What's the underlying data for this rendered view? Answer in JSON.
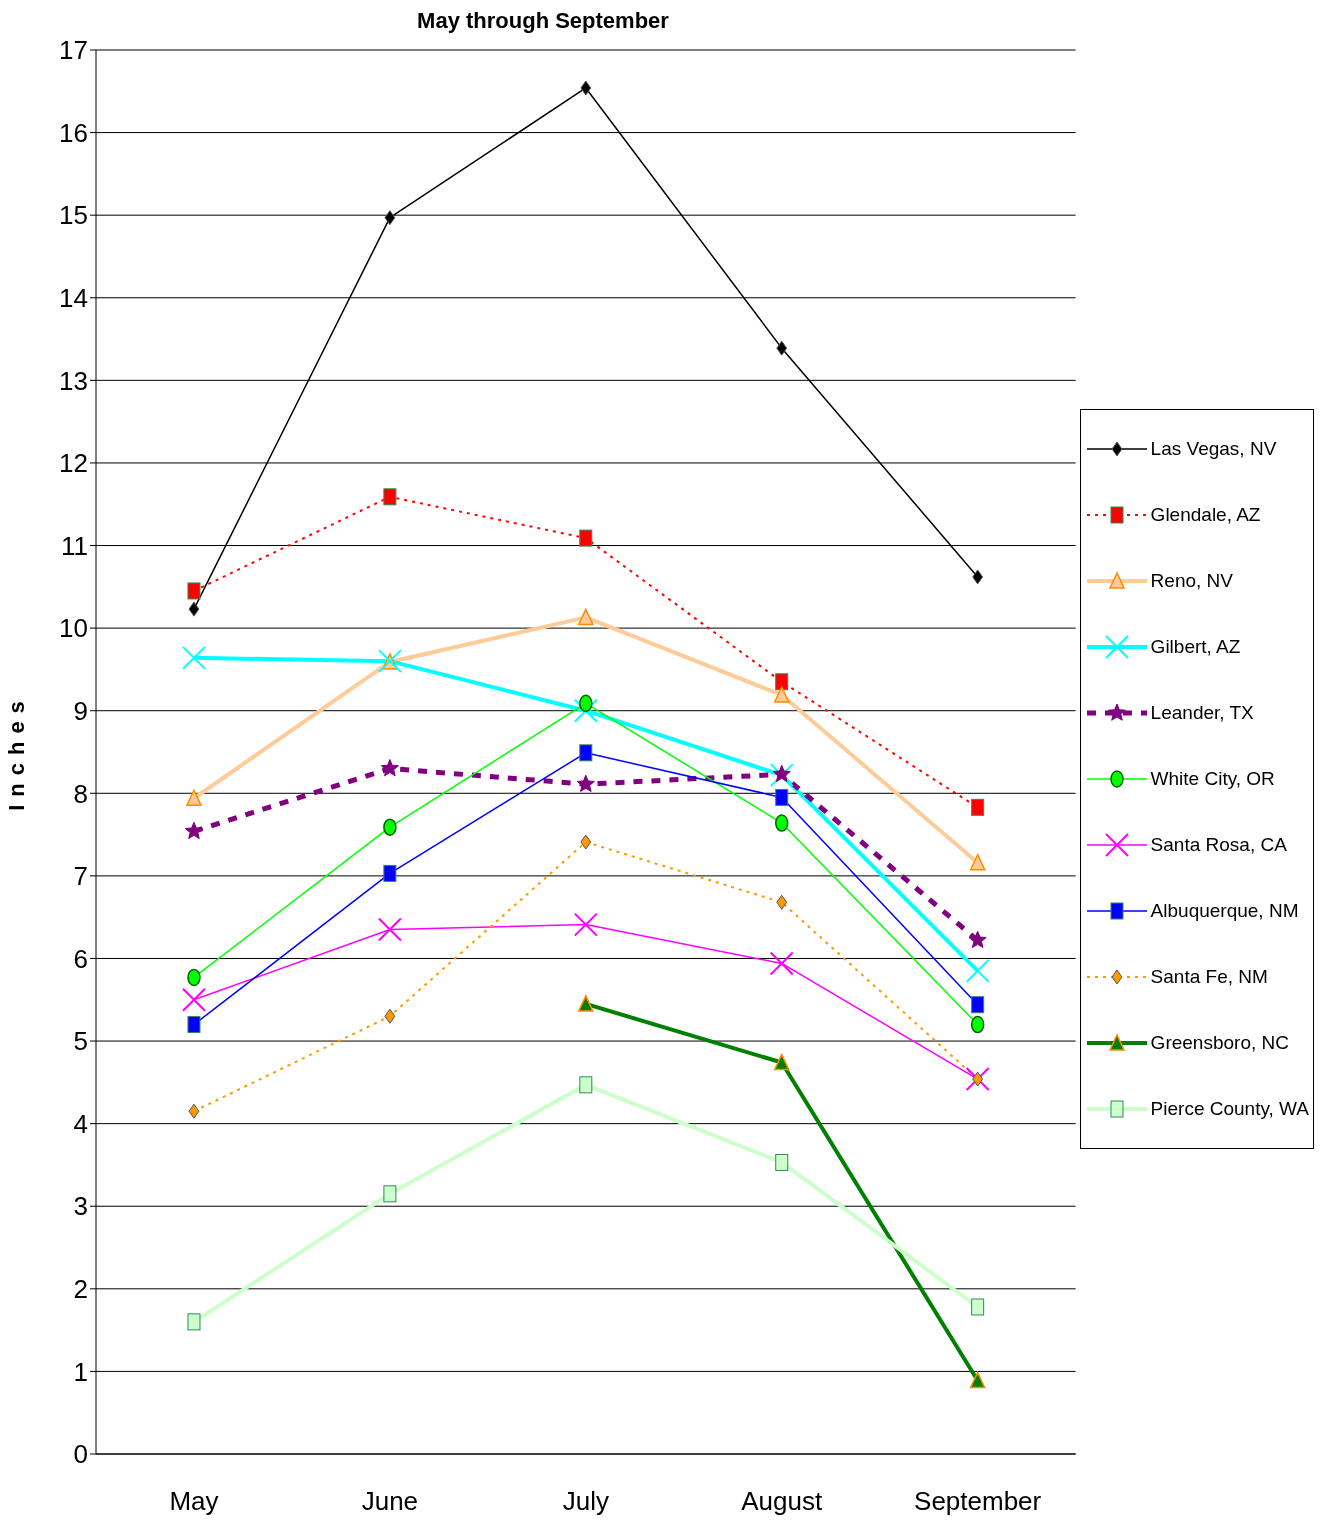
{
  "chart_data": {
    "type": "line",
    "title": "May through September",
    "ylabel": "Inches",
    "categories": [
      "May",
      "June",
      "July",
      "August",
      "September"
    ],
    "ylim": [
      0,
      17
    ],
    "yticks": [
      0,
      1,
      2,
      3,
      4,
      5,
      6,
      7,
      8,
      9,
      10,
      11,
      12,
      13,
      14,
      15,
      16,
      17
    ],
    "grid": "y",
    "legend": "right",
    "series": [
      {
        "name": "Las Vegas, NV",
        "color": "#000000",
        "marker": "diamond",
        "line_style": "solid",
        "values": [
          10.23,
          14.97,
          16.54,
          13.39,
          10.62
        ]
      },
      {
        "name": "Glendale, AZ",
        "color": "#ff0000",
        "marker": "square",
        "line_style": "dotted",
        "values": [
          10.45,
          11.59,
          11.09,
          9.35,
          7.83
        ]
      },
      {
        "name": "Reno, NV",
        "color": "#ffcc99",
        "marker": "triangle",
        "line_style": "solid",
        "values": [
          7.94,
          9.59,
          10.13,
          9.19,
          7.16
        ]
      },
      {
        "name": "Gilbert, AZ",
        "color": "#00ffff",
        "marker": "cross",
        "line_style": "solid",
        "values": [
          9.64,
          9.6,
          9.0,
          8.22,
          5.85
        ]
      },
      {
        "name": "Leander, TX",
        "color": "#800080",
        "marker": "star",
        "line_style": "dashed",
        "values": [
          7.54,
          8.3,
          8.11,
          8.23,
          6.22
        ]
      },
      {
        "name": "White City, OR",
        "color": "#00ff00",
        "marker": "circle",
        "line_style": "solid",
        "values": [
          5.77,
          7.59,
          9.09,
          7.64,
          5.2
        ]
      },
      {
        "name": "Santa Rosa, CA",
        "color": "#ff00ff",
        "marker": "cross",
        "line_style": "solid",
        "values": [
          5.5,
          6.35,
          6.41,
          5.94,
          4.54
        ]
      },
      {
        "name": "Albuquerque, NM",
        "color": "#0000ff",
        "marker": "square",
        "line_style": "solid",
        "values": [
          5.2,
          7.03,
          8.49,
          7.95,
          5.44
        ]
      },
      {
        "name": "Santa Fe, NM",
        "color": "#ff9900",
        "marker": "diamond",
        "line_style": "dotted",
        "values": [
          4.15,
          5.3,
          7.41,
          6.68,
          4.54
        ]
      },
      {
        "name": "Greensboro, NC",
        "color": "#008000",
        "marker": "triangle",
        "line_style": "solid",
        "values": [
          null,
          null,
          5.45,
          4.74,
          0.89
        ]
      },
      {
        "name": "Pierce County, WA",
        "color": "#ccffcc",
        "marker": "square",
        "line_style": "solid",
        "values": [
          1.6,
          3.15,
          4.47,
          3.53,
          1.78
        ]
      }
    ]
  }
}
